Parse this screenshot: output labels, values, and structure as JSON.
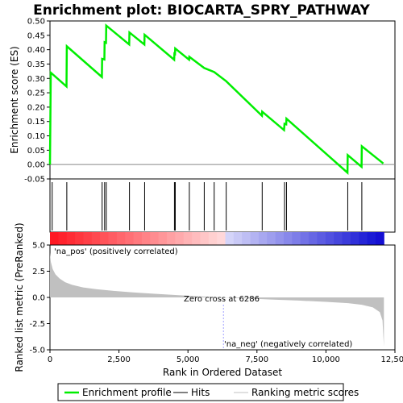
{
  "chart_data": {
    "type": "line",
    "title": "Enrichment plot: BIOCARTA_SPRY_PATHWAY",
    "es_panel": {
      "ylabel": "Enrichment score (ES)",
      "ylim": [
        -0.05,
        0.5
      ],
      "yticks": [
        "-0.05",
        "0.00",
        "0.05",
        "0.10",
        "0.15",
        "0.20",
        "0.25",
        "0.30",
        "0.35",
        "0.40",
        "0.45",
        "0.50"
      ],
      "ytick_values": [
        -0.05,
        0,
        0.05,
        0.1,
        0.15,
        0.2,
        0.25,
        0.3,
        0.35,
        0.4,
        0.45,
        0.5
      ],
      "series": [
        {
          "color": "#00ee00",
          "points": [
            [
              0,
              0
            ],
            [
              30,
              0.32
            ],
            [
              600,
              0.272
            ],
            [
              610,
              0.412
            ],
            [
              1880,
              0.305
            ],
            [
              1890,
              0.368
            ],
            [
              1970,
              0.366
            ],
            [
              1980,
              0.426
            ],
            [
              2030,
              0.424
            ],
            [
              2040,
              0.484
            ],
            [
              2870,
              0.418
            ],
            [
              2880,
              0.46
            ],
            [
              3420,
              0.418
            ],
            [
              3430,
              0.452
            ],
            [
              4500,
              0.365
            ],
            [
              4510,
              0.386
            ],
            [
              4530,
              0.385
            ],
            [
              4540,
              0.404
            ],
            [
              5040,
              0.365
            ],
            [
              5050,
              0.375
            ],
            [
              5590,
              0.336
            ],
            [
              5950,
              0.322
            ],
            [
              6386,
              0.29
            ],
            [
              7680,
              0.17
            ],
            [
              7690,
              0.184
            ],
            [
              8480,
              0.12
            ],
            [
              8500,
              0.142
            ],
            [
              8560,
              0.14
            ],
            [
              8570,
              0.16
            ],
            [
              10780,
              -0.028
            ],
            [
              10790,
              0.033
            ],
            [
              11290,
              -0.008
            ],
            [
              11300,
              0.064
            ],
            [
              12080,
              0.004
            ]
          ]
        }
      ]
    },
    "hits": [
      80,
      610,
      1890,
      1980,
      2040,
      2880,
      3430,
      4510,
      4540,
      5050,
      5590,
      5950,
      6386,
      7690,
      8500,
      8570,
      10790,
      11300
    ],
    "metric_panel": {
      "ylabel": "Ranked list metric (PreRanked)",
      "ylim": [
        -5,
        5
      ],
      "yticks": [
        "-5.0",
        "-2.5",
        "0.0",
        "2.5",
        "5.0"
      ],
      "ytick_values": [
        -5,
        -2.5,
        0,
        2.5,
        5
      ],
      "profile": [
        [
          0,
          4.3
        ],
        [
          30,
          3.4
        ],
        [
          100,
          2.7
        ],
        [
          200,
          2.2
        ],
        [
          350,
          1.8
        ],
        [
          550,
          1.45
        ],
        [
          800,
          1.2
        ],
        [
          1200,
          0.95
        ],
        [
          1700,
          0.78
        ],
        [
          2300,
          0.62
        ],
        [
          3000,
          0.48
        ],
        [
          3800,
          0.35
        ],
        [
          4600,
          0.22
        ],
        [
          5400,
          0.11
        ],
        [
          6286,
          0.0
        ],
        [
          7000,
          -0.08
        ],
        [
          8000,
          -0.2
        ],
        [
          9000,
          -0.3
        ],
        [
          10000,
          -0.42
        ],
        [
          10800,
          -0.55
        ],
        [
          11300,
          -0.7
        ],
        [
          11700,
          -0.95
        ],
        [
          11950,
          -1.4
        ],
        [
          12050,
          -2.2
        ],
        [
          12100,
          -4.7
        ]
      ],
      "zero_cross_label": "Zero cross at 6286",
      "zero_cross": 6286,
      "pos_label": "'na_pos' (positively correlated)",
      "neg_label": "'na_neg' (negatively correlated)"
    },
    "x_axis": {
      "label": "Rank in Ordered Dataset",
      "xlim": [
        0,
        12500
      ],
      "ticks": [
        0,
        2500,
        5000,
        7500,
        10000,
        12500
      ],
      "tick_labels": [
        "0",
        "2,500",
        "5,000",
        "7,500",
        "10,000",
        "12,500"
      ],
      "max_rank": 12100
    },
    "legend": [
      {
        "label": "Enrichment profile",
        "color": "#00ee00"
      },
      {
        "label": "Hits",
        "color": "#000000"
      },
      {
        "label": "Ranking metric scores",
        "color": "#c0c0c0"
      }
    ],
    "colors": {
      "es_line": "#00ee00",
      "zero_line": "#888888",
      "hit": "#000000",
      "metric_fill": "#c0c0c0",
      "pos_text": "#cc0000",
      "neg_text": "#0000cc",
      "zero_cross_line": "#a0a0ff"
    }
  }
}
